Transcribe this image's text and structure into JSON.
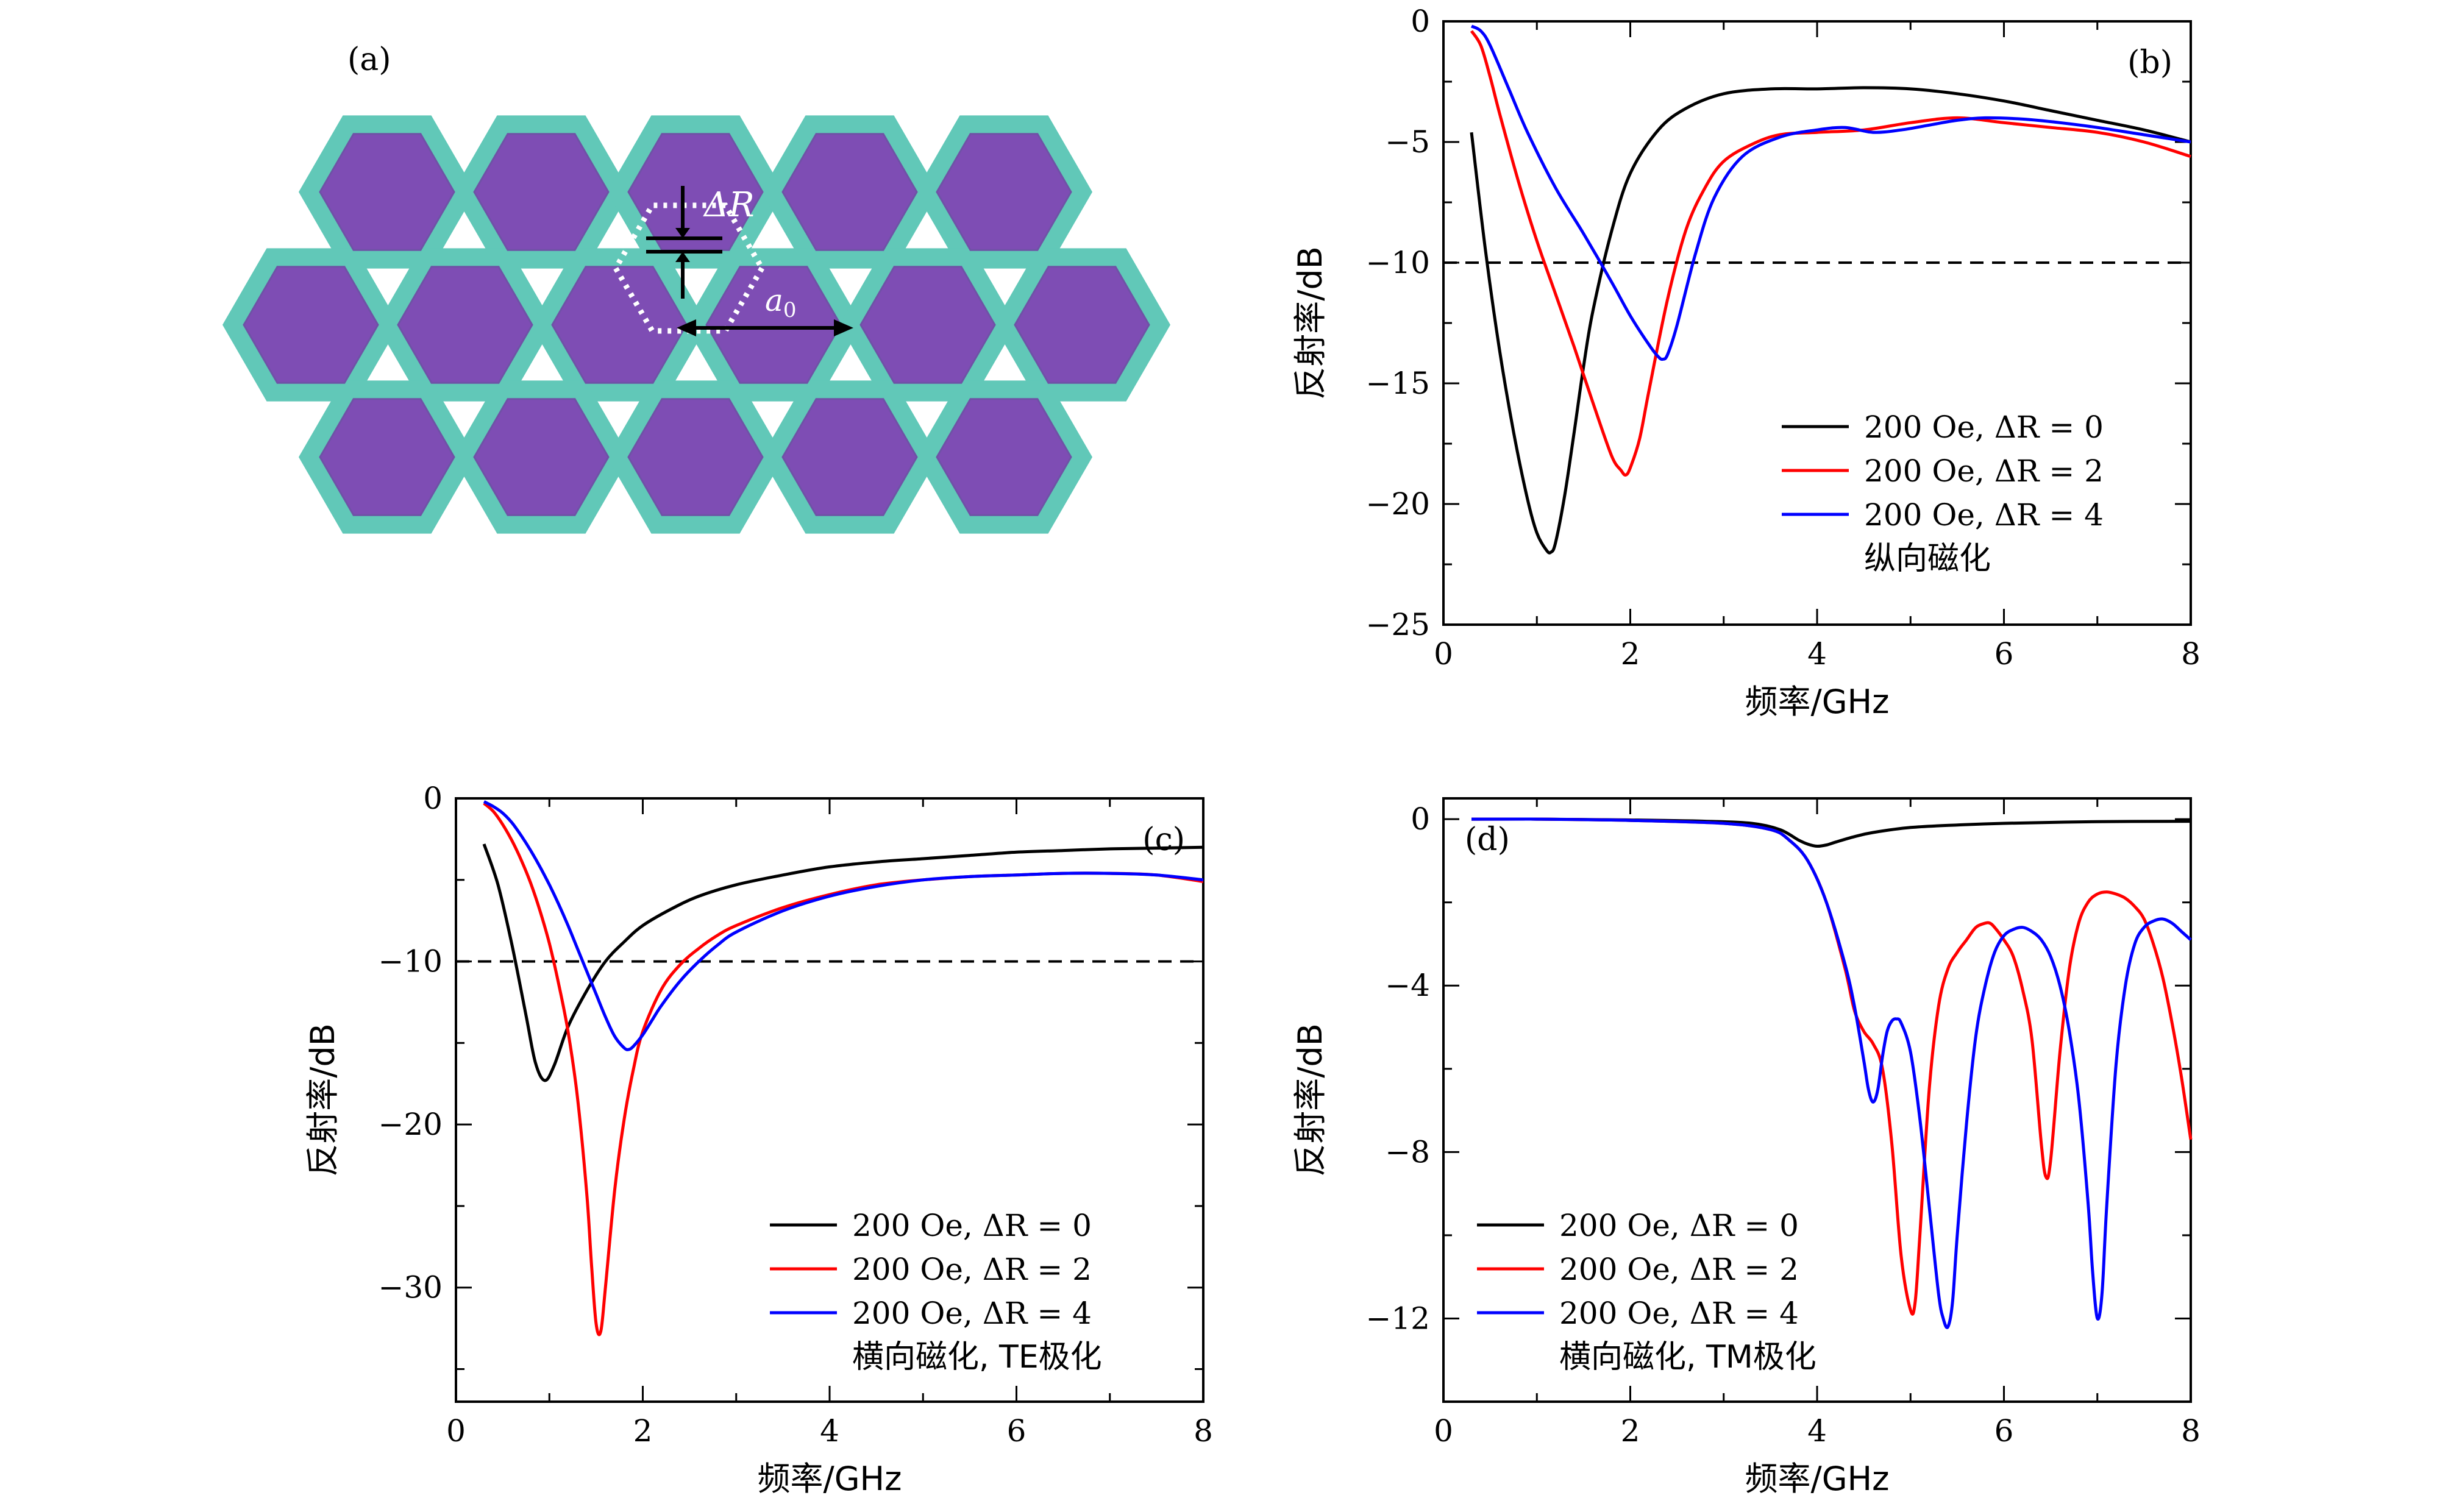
{
  "colors": {
    "black": "#000000",
    "red": "#ff0000",
    "blue": "#0000ff",
    "hex_fill": "#7e4db4",
    "hex_wall": "#61c8b8",
    "hex_edge": "#6f52a6"
  },
  "panel_a": {
    "label": "(a)",
    "delta_r_label": "ΔR",
    "a0_label": "a",
    "a0_sub": "0"
  },
  "chart_data": [
    {
      "id": "b",
      "type": "line",
      "label": "(b)",
      "xlabel": "频率/GHz",
      "ylabel": "反射率/dB",
      "xlim": [
        0,
        8
      ],
      "ylim": [
        -25,
        0
      ],
      "xticks": [
        0,
        2,
        4,
        6,
        8
      ],
      "yticks": [
        0,
        -5,
        -10,
        -15,
        -20,
        -25
      ],
      "xtick_labels": [
        "0",
        "2",
        "4",
        "6",
        "8"
      ],
      "ytick_labels": [
        "0",
        "−5",
        "−10",
        "−15",
        "−20",
        "−25"
      ],
      "reference_line": -10,
      "legend": [
        "200 Oe, ΔR = 0",
        "200 Oe, ΔR = 2",
        "200 Oe, ΔR = 4"
      ],
      "note": "纵向磁化",
      "series": [
        {
          "name": "200 Oe, ΔR = 0",
          "color": "#000000",
          "x": [
            0.3,
            0.45,
            0.6,
            0.75,
            0.9,
            1.0,
            1.1,
            1.15,
            1.2,
            1.3,
            1.4,
            1.5,
            1.6,
            1.8,
            2.0,
            2.3,
            2.6,
            3.0,
            3.5,
            4.0,
            4.5,
            5.0,
            5.5,
            6.0,
            6.5,
            7.0,
            7.5,
            8.0
          ],
          "y": [
            -4.6,
            -9.5,
            -13.6,
            -17.0,
            -19.8,
            -21.2,
            -21.9,
            -22.0,
            -21.6,
            -19.6,
            -17.0,
            -14.3,
            -12.0,
            -8.7,
            -6.3,
            -4.5,
            -3.6,
            -3.0,
            -2.8,
            -2.8,
            -2.75,
            -2.8,
            -3.0,
            -3.3,
            -3.7,
            -4.1,
            -4.5,
            -5.0
          ]
        },
        {
          "name": "200 Oe, ΔR = 2",
          "color": "#ff0000",
          "x": [
            0.3,
            0.4,
            0.5,
            0.6,
            0.8,
            1.0,
            1.2,
            1.4,
            1.6,
            1.8,
            1.9,
            1.95,
            2.0,
            2.1,
            2.2,
            2.4,
            2.6,
            2.8,
            3.0,
            3.3,
            3.6,
            4.0,
            4.5,
            5.0,
            5.5,
            6.0,
            6.5,
            7.0,
            7.5,
            8.0
          ],
          "y": [
            -0.4,
            -1.0,
            -2.3,
            -3.8,
            -6.6,
            -9.1,
            -11.3,
            -13.5,
            -15.8,
            -18.0,
            -18.6,
            -18.8,
            -18.5,
            -17.3,
            -15.3,
            -11.5,
            -8.6,
            -6.9,
            -5.8,
            -5.1,
            -4.7,
            -4.6,
            -4.5,
            -4.2,
            -4.0,
            -4.2,
            -4.4,
            -4.6,
            -5.0,
            -5.6
          ]
        },
        {
          "name": "200 Oe, ΔR = 4",
          "color": "#0000ff",
          "x": [
            0.3,
            0.4,
            0.5,
            0.7,
            0.9,
            1.2,
            1.5,
            1.8,
            2.0,
            2.2,
            2.3,
            2.35,
            2.4,
            2.5,
            2.7,
            2.9,
            3.2,
            3.6,
            4.0,
            4.3,
            4.6,
            4.9,
            5.2,
            5.5,
            5.8,
            6.2,
            6.6,
            7.0,
            7.5,
            8.0
          ],
          "y": [
            -0.2,
            -0.4,
            -1.0,
            -2.8,
            -4.6,
            -6.9,
            -8.8,
            -10.8,
            -12.2,
            -13.4,
            -13.9,
            -14.0,
            -13.8,
            -12.6,
            -9.6,
            -7.3,
            -5.6,
            -4.8,
            -4.5,
            -4.4,
            -4.6,
            -4.5,
            -4.3,
            -4.1,
            -4.0,
            -4.05,
            -4.2,
            -4.4,
            -4.7,
            -5.0
          ]
        }
      ]
    },
    {
      "id": "c",
      "type": "line",
      "label": "(c)",
      "xlabel": "频率/GHz",
      "ylabel": "反射率/dB",
      "xlim": [
        0,
        8
      ],
      "ylim": [
        -37,
        0
      ],
      "xticks": [
        0,
        2,
        4,
        6,
        8
      ],
      "yticks": [
        0,
        -10,
        -20,
        -30
      ],
      "xtick_labels": [
        "0",
        "2",
        "4",
        "6",
        "8"
      ],
      "ytick_labels": [
        "0",
        "−10",
        "−20",
        "−30"
      ],
      "reference_line": -10,
      "legend": [
        "200 Oe, ΔR = 0",
        "200 Oe, ΔR = 2",
        "200 Oe, ΔR = 4"
      ],
      "note": "横向磁化, TE极化",
      "series": [
        {
          "name": "200 Oe, ΔR = 0",
          "color": "#000000",
          "x": [
            0.3,
            0.45,
            0.6,
            0.75,
            0.85,
            0.95,
            1.05,
            1.2,
            1.4,
            1.6,
            1.8,
            2.0,
            2.3,
            2.6,
            3.0,
            3.5,
            4.0,
            4.5,
            5.0,
            5.5,
            6.0,
            6.5,
            7.0,
            7.5,
            8.0
          ],
          "y": [
            -2.8,
            -5.3,
            -9.0,
            -13.3,
            -16.2,
            -17.3,
            -16.4,
            -14.0,
            -11.8,
            -10.0,
            -8.8,
            -7.8,
            -6.8,
            -6.0,
            -5.3,
            -4.7,
            -4.2,
            -3.9,
            -3.7,
            -3.5,
            -3.3,
            -3.2,
            -3.1,
            -3.05,
            -3.0
          ]
        },
        {
          "name": "200 Oe, ΔR = 2",
          "color": "#ff0000",
          "x": [
            0.3,
            0.4,
            0.5,
            0.6,
            0.7,
            0.8,
            0.9,
            1.0,
            1.1,
            1.2,
            1.3,
            1.4,
            1.45,
            1.5,
            1.55,
            1.6,
            1.7,
            1.8,
            1.9,
            2.0,
            2.2,
            2.4,
            2.6,
            2.8,
            3.0,
            3.5,
            4.0,
            4.5,
            5.0,
            5.5,
            6.0,
            6.5,
            7.0,
            7.5,
            8.0
          ],
          "y": [
            -0.3,
            -0.8,
            -1.6,
            -2.6,
            -3.8,
            -5.2,
            -6.9,
            -8.9,
            -11.4,
            -14.3,
            -18.3,
            -24.2,
            -28.5,
            -32.2,
            -32.7,
            -30.0,
            -24.0,
            -19.7,
            -16.6,
            -14.3,
            -11.7,
            -10.2,
            -9.2,
            -8.4,
            -7.8,
            -6.7,
            -5.9,
            -5.3,
            -5.0,
            -4.8,
            -4.7,
            -4.6,
            -4.6,
            -4.7,
            -5.1
          ]
        },
        {
          "name": "200 Oe, ΔR = 4",
          "color": "#0000ff",
          "x": [
            0.3,
            0.4,
            0.5,
            0.6,
            0.7,
            0.8,
            0.9,
            1.0,
            1.1,
            1.2,
            1.3,
            1.4,
            1.5,
            1.6,
            1.7,
            1.8,
            1.85,
            1.9,
            2.0,
            2.1,
            2.2,
            2.4,
            2.6,
            2.8,
            3.0,
            3.5,
            4.0,
            4.5,
            5.0,
            5.5,
            6.0,
            6.5,
            7.0,
            7.5,
            8.0
          ],
          "y": [
            -0.2,
            -0.5,
            -0.9,
            -1.5,
            -2.3,
            -3.2,
            -4.2,
            -5.3,
            -6.5,
            -7.8,
            -9.2,
            -10.6,
            -12.0,
            -13.4,
            -14.6,
            -15.3,
            -15.4,
            -15.2,
            -14.5,
            -13.6,
            -12.7,
            -11.2,
            -10.0,
            -9.0,
            -8.2,
            -6.9,
            -6.0,
            -5.4,
            -5.0,
            -4.8,
            -4.7,
            -4.6,
            -4.6,
            -4.7,
            -5.0
          ]
        }
      ]
    },
    {
      "id": "d",
      "type": "line",
      "label": "(d)",
      "xlabel": "频率/GHz",
      "ylabel": "反射率/dB",
      "xlim": [
        0,
        8
      ],
      "ylim": [
        -14,
        0.5
      ],
      "xticks": [
        0,
        2,
        4,
        6,
        8
      ],
      "yticks": [
        0,
        -4,
        -8,
        -12
      ],
      "xtick_labels": [
        "0",
        "2",
        "4",
        "6",
        "8"
      ],
      "ytick_labels": [
        "0",
        "−4",
        "−8",
        "−12"
      ],
      "reference_line": null,
      "legend": [
        "200 Oe, ΔR = 0",
        "200 Oe, ΔR = 2",
        "200 Oe, ΔR = 4"
      ],
      "note": "横向磁化, TM极化",
      "series": [
        {
          "name": "200 Oe, ΔR = 0",
          "color": "#000000",
          "x": [
            0.3,
            1.0,
            2.0,
            2.8,
            3.3,
            3.6,
            3.8,
            3.9,
            4.0,
            4.1,
            4.2,
            4.4,
            4.6,
            5.0,
            5.5,
            6.0,
            7.0,
            8.0
          ],
          "y": [
            0.0,
            0.0,
            -0.02,
            -0.05,
            -0.1,
            -0.25,
            -0.5,
            -0.6,
            -0.65,
            -0.62,
            -0.55,
            -0.42,
            -0.32,
            -0.2,
            -0.14,
            -0.1,
            -0.06,
            -0.05
          ]
        },
        {
          "name": "200 Oe, ΔR = 2",
          "color": "#ff0000",
          "x": [
            0.3,
            1.0,
            2.0,
            3.0,
            3.5,
            3.7,
            3.9,
            4.1,
            4.3,
            4.4,
            4.5,
            4.6,
            4.7,
            4.8,
            4.9,
            5.0,
            5.05,
            5.1,
            5.2,
            5.3,
            5.4,
            5.5,
            5.6,
            5.7,
            5.8,
            5.85,
            5.9,
            6.0,
            6.1,
            6.2,
            6.3,
            6.4,
            6.45,
            6.5,
            6.6,
            6.7,
            6.8,
            6.9,
            7.0,
            7.1,
            7.2,
            7.3,
            7.4,
            7.5,
            7.6,
            7.7,
            7.8,
            7.9,
            8.0
          ],
          "y": [
            0.0,
            0.0,
            -0.03,
            -0.1,
            -0.25,
            -0.5,
            -1.0,
            -2.0,
            -3.6,
            -4.6,
            -5.1,
            -5.4,
            -6.0,
            -7.8,
            -10.5,
            -11.8,
            -11.6,
            -10.0,
            -6.5,
            -4.5,
            -3.6,
            -3.2,
            -2.9,
            -2.6,
            -2.5,
            -2.5,
            -2.6,
            -2.9,
            -3.3,
            -4.1,
            -5.3,
            -7.8,
            -8.6,
            -8.2,
            -5.6,
            -3.6,
            -2.5,
            -2.0,
            -1.8,
            -1.75,
            -1.8,
            -1.9,
            -2.1,
            -2.4,
            -3.0,
            -3.8,
            -4.9,
            -6.2,
            -7.7
          ]
        },
        {
          "name": "200 Oe, ΔR = 4",
          "color": "#0000ff",
          "x": [
            0.3,
            1.0,
            2.0,
            3.0,
            3.5,
            3.7,
            3.9,
            4.1,
            4.3,
            4.4,
            4.5,
            4.55,
            4.6,
            4.65,
            4.7,
            4.75,
            4.8,
            4.85,
            4.9,
            5.0,
            5.1,
            5.2,
            5.3,
            5.35,
            5.4,
            5.45,
            5.5,
            5.6,
            5.7,
            5.8,
            5.9,
            6.0,
            6.1,
            6.2,
            6.3,
            6.4,
            6.5,
            6.6,
            6.7,
            6.8,
            6.9,
            6.95,
            7.0,
            7.05,
            7.1,
            7.2,
            7.3,
            7.4,
            7.5,
            7.6,
            7.7,
            7.8,
            7.9,
            8.0
          ],
          "y": [
            0.0,
            0.0,
            -0.03,
            -0.1,
            -0.25,
            -0.5,
            -1.0,
            -2.0,
            -3.5,
            -4.5,
            -5.8,
            -6.5,
            -6.8,
            -6.5,
            -5.7,
            -5.1,
            -4.85,
            -4.8,
            -4.9,
            -5.6,
            -7.2,
            -9.3,
            -11.4,
            -12.0,
            -12.2,
            -11.6,
            -10.0,
            -7.3,
            -5.2,
            -4.0,
            -3.2,
            -2.8,
            -2.65,
            -2.6,
            -2.7,
            -2.9,
            -3.3,
            -4.0,
            -5.1,
            -6.7,
            -9.2,
            -10.9,
            -12.0,
            -11.4,
            -9.3,
            -5.9,
            -4.0,
            -3.0,
            -2.6,
            -2.45,
            -2.4,
            -2.5,
            -2.7,
            -2.9
          ]
        }
      ]
    }
  ]
}
